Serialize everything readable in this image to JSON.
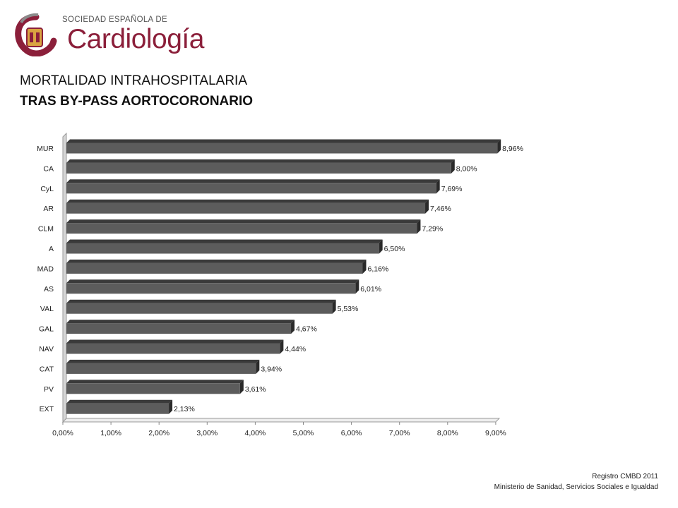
{
  "logo": {
    "subtitle": "SOCIEDAD ESPAÑOLA DE",
    "name": "Cardiología",
    "icon": "heart-seal-icon",
    "colors": {
      "brand": "#8b1f3a",
      "gold": "#d9a441",
      "gray": "#8a8a8a"
    }
  },
  "title": {
    "line1": "MORTALIDAD INTRAHOSPITALARIA",
    "line2": "TRAS BY-PASS AORTOCORONARIO"
  },
  "footer": {
    "line1": "Registro CMBD 2011",
    "line2": "Ministerio de Sanidad, Servicios Sociales e Igualdad"
  },
  "chart_data": {
    "type": "bar",
    "orientation": "horizontal",
    "style": "3d",
    "categories": [
      "MUR",
      "CA",
      "CyL",
      "AR",
      "CLM",
      "A",
      "MAD",
      "AS",
      "VAL",
      "GAL",
      "NAV",
      "CAT",
      "PV",
      "EXT"
    ],
    "values": [
      8.96,
      8.0,
      7.69,
      7.46,
      7.29,
      6.5,
      6.16,
      6.01,
      5.53,
      4.67,
      4.44,
      3.94,
      3.61,
      2.13
    ],
    "value_labels": [
      "8,96%",
      "8,00%",
      "7,69%",
      "7,46%",
      "7,29%",
      "6,50%",
      "6,16%",
      "6,01%",
      "5,53%",
      "4,67%",
      "4,44%",
      "3,94%",
      "3,61%",
      "2,13%"
    ],
    "xlim": [
      0,
      9
    ],
    "x_ticks": [
      "0,00%",
      "1,00%",
      "2,00%",
      "3,00%",
      "4,00%",
      "5,00%",
      "6,00%",
      "7,00%",
      "8,00%",
      "9,00%"
    ],
    "grid": false,
    "legend": "none",
    "colors": {
      "bar_front": "#5c5c5c",
      "bar_top": "#3a3a3a",
      "bar_side": "#2a2a2a",
      "wall": "#d6d6d6"
    }
  }
}
